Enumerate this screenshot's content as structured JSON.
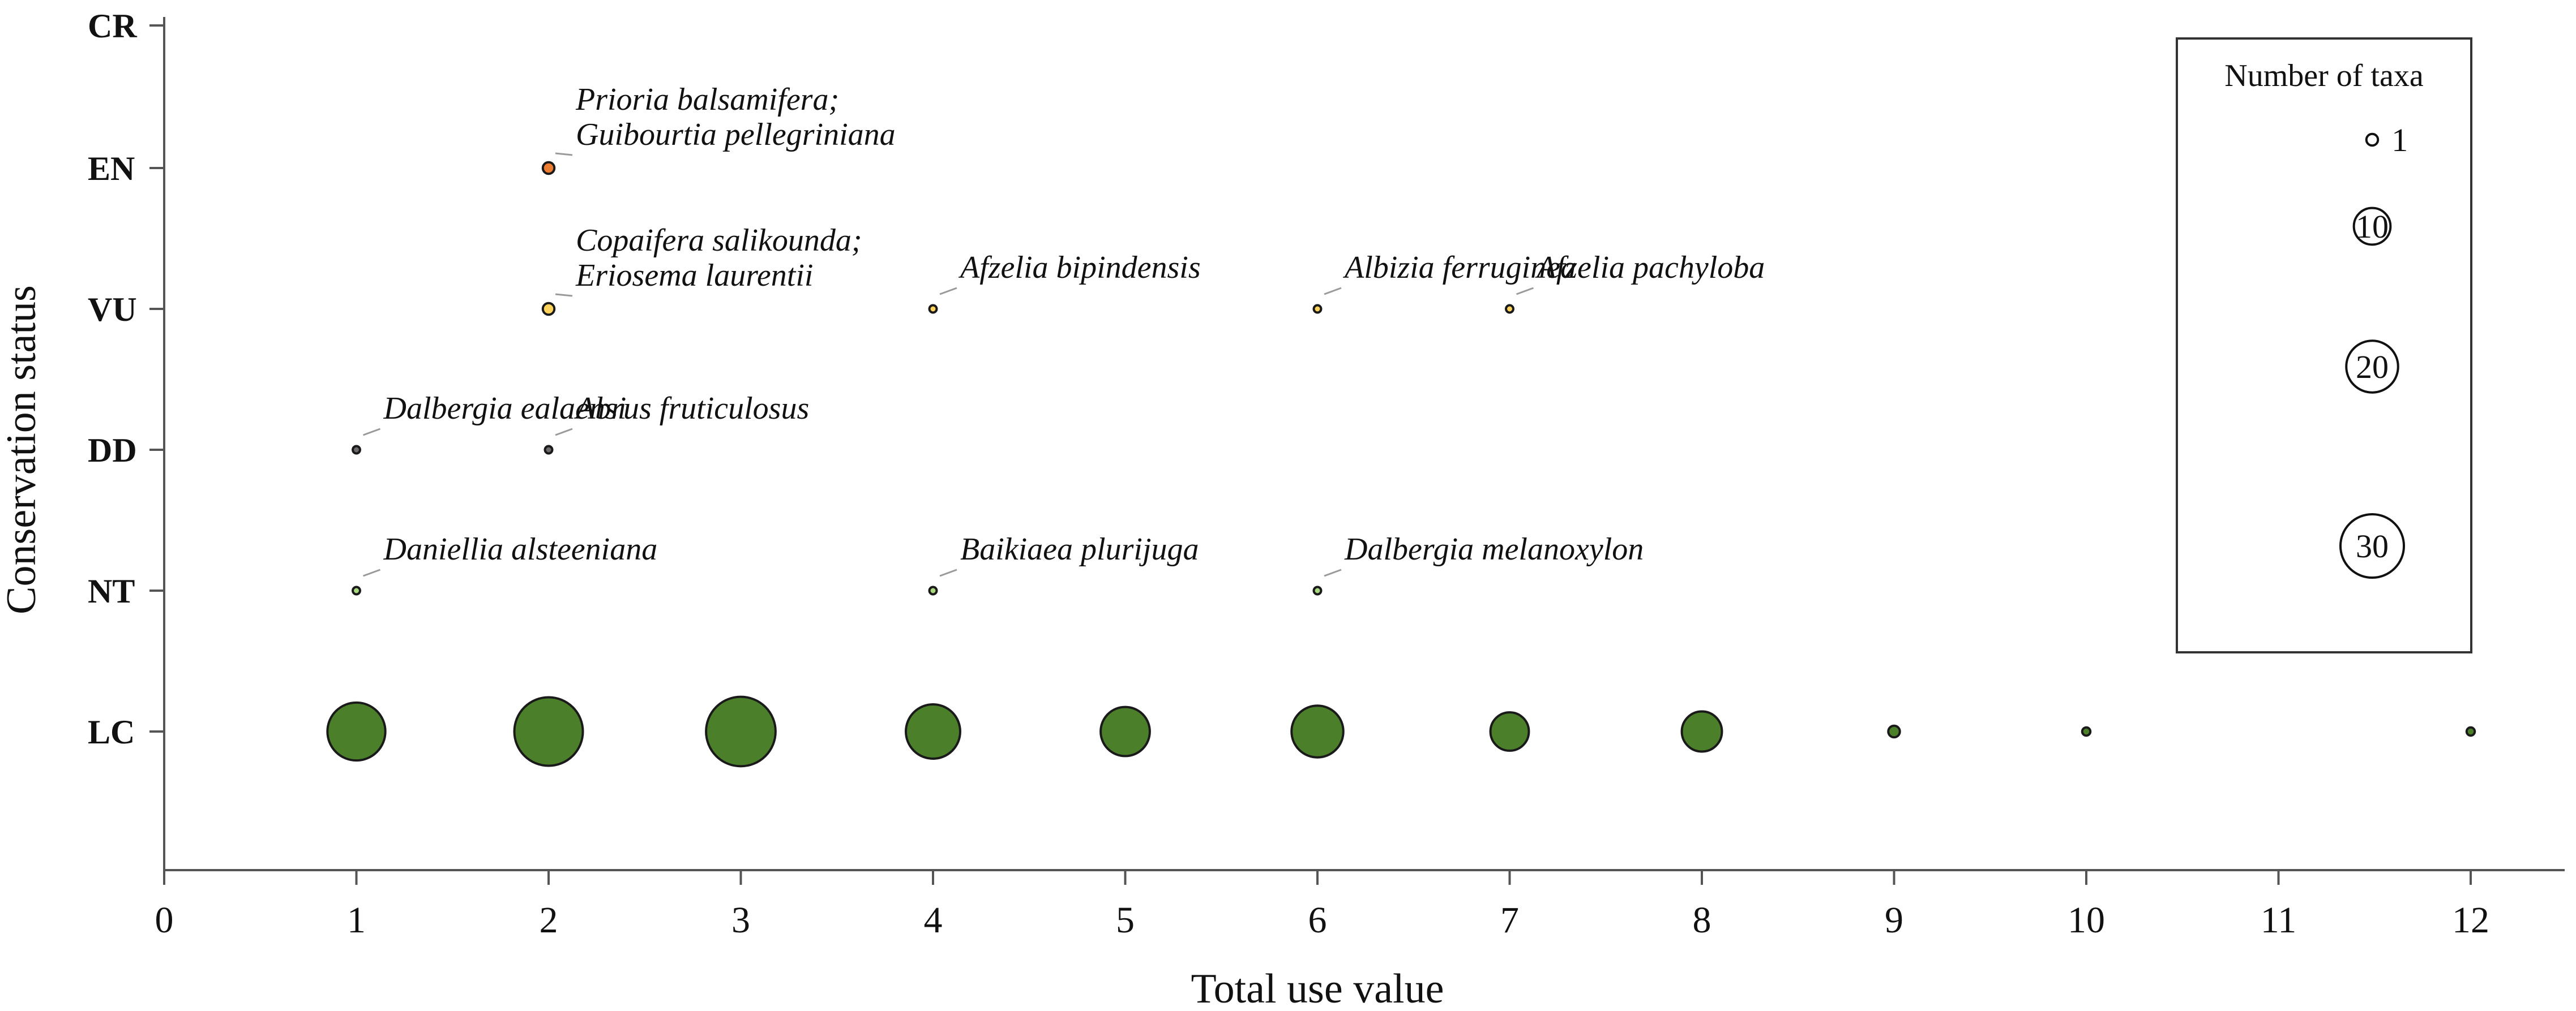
{
  "chart_data": {
    "type": "scatter",
    "subtype": "bubble",
    "xlabel": "Total use value",
    "ylabel": "Conservation status",
    "xlim": [
      0,
      12
    ],
    "xticks": [
      "0",
      "1",
      "2",
      "3",
      "4",
      "5",
      "6",
      "7",
      "8",
      "9",
      "10",
      "11",
      "12"
    ],
    "categories": [
      "CR",
      "EN",
      "VU",
      "DD",
      "NT",
      "LC"
    ],
    "status_colors": {
      "CR": "#c0392b",
      "EN": "#ed7d31",
      "VU": "#ffd35c",
      "DD": "#6f6a6e",
      "NT": "#a9d97f",
      "LC": "#4b7f2a"
    },
    "points": [
      {
        "status": "EN",
        "x": 2,
        "taxa": 1
      },
      {
        "status": "VU",
        "x": 2,
        "taxa": 1
      },
      {
        "status": "VU",
        "x": 4,
        "taxa": 0.4
      },
      {
        "status": "VU",
        "x": 6,
        "taxa": 0.4
      },
      {
        "status": "VU",
        "x": 7,
        "taxa": 0.4
      },
      {
        "status": "DD",
        "x": 1,
        "taxa": 0.4
      },
      {
        "status": "DD",
        "x": 2,
        "taxa": 0.4
      },
      {
        "status": "NT",
        "x": 1,
        "taxa": 0.4
      },
      {
        "status": "NT",
        "x": 4,
        "taxa": 0.4
      },
      {
        "status": "NT",
        "x": 6,
        "taxa": 0.4
      },
      {
        "status": "LC",
        "x": 1,
        "taxa": 25
      },
      {
        "status": "LC",
        "x": 2,
        "taxa": 35
      },
      {
        "status": "LC",
        "x": 3,
        "taxa": 36
      },
      {
        "status": "LC",
        "x": 4,
        "taxa": 22
      },
      {
        "status": "LC",
        "x": 5,
        "taxa": 18
      },
      {
        "status": "LC",
        "x": 6,
        "taxa": 20
      },
      {
        "status": "LC",
        "x": 7,
        "taxa": 11
      },
      {
        "status": "LC",
        "x": 8,
        "taxa": 12
      },
      {
        "status": "LC",
        "x": 9,
        "taxa": 1
      },
      {
        "status": "LC",
        "x": 10,
        "taxa": 0.5
      },
      {
        "status": "LC",
        "x": 12,
        "taxa": 0.5
      }
    ],
    "annotations": [
      {
        "status": "EN",
        "x": 2,
        "lines": [
          "Prioria balsamifera;",
          "Guibourtia pellegriniana"
        ]
      },
      {
        "status": "VU",
        "x": 2,
        "lines": [
          "Copaifera salikounda;",
          "Eriosema laurentii"
        ]
      },
      {
        "status": "VU",
        "x": 4,
        "lines": [
          "Afzelia bipindensis"
        ]
      },
      {
        "status": "VU",
        "x": 6,
        "lines": [
          "Albizia ferruginea"
        ]
      },
      {
        "status": "VU",
        "x": 7,
        "lines": [
          "Afzelia pachyloba"
        ]
      },
      {
        "status": "DD",
        "x": 1,
        "lines": [
          "Dalbergia ealaensi"
        ]
      },
      {
        "status": "DD",
        "x": 2,
        "lines": [
          "Abrus fruticulosus"
        ]
      },
      {
        "status": "NT",
        "x": 1,
        "lines": [
          "Daniellia alsteeniana"
        ]
      },
      {
        "status": "NT",
        "x": 4,
        "lines": [
          "Baikiaea plurijuga"
        ]
      },
      {
        "status": "NT",
        "x": 6,
        "lines": [
          "Dalbergia melanoxylon"
        ]
      }
    ],
    "legend": {
      "title": "Number of taxa",
      "placement": "top-right",
      "sizes": [
        1,
        10,
        20,
        30
      ]
    },
    "grid": false
  }
}
